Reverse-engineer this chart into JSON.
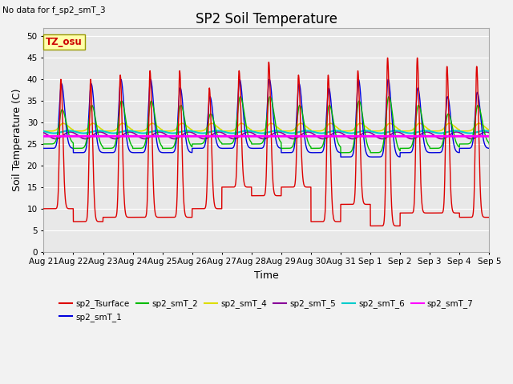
{
  "title": "SP2 Soil Temperature",
  "ylabel": "Soil Temperature (C)",
  "xlabel": "Time",
  "no_data_note": "No data for f_sp2_smT_3",
  "tz_label": "TZ_osu",
  "ylim": [
    0,
    52
  ],
  "yticks": [
    0,
    5,
    10,
    15,
    20,
    25,
    30,
    35,
    40,
    45,
    50
  ],
  "tick_labels": [
    "Aug 21",
    "Aug 22",
    "Aug 23",
    "Aug 24",
    "Aug 25",
    "Aug 26",
    "Aug 27",
    "Aug 28",
    "Aug 29",
    "Aug 30",
    "Aug 31",
    "Sep 1",
    "Sep 2",
    "Sep 3",
    "Sep 4",
    "Sep 5"
  ],
  "bg_color": "#e8e8e8",
  "fig_bg_color": "#f2f2f2",
  "series_colors": {
    "sp2_Tsurface": "#dd0000",
    "sp2_smT_1": "#0000dd",
    "sp2_smT_2": "#00bb00",
    "sp2_smT_4": "#dddd00",
    "sp2_smT_5": "#880099",
    "sp2_smT_6": "#00cccc",
    "sp2_smT_7": "#ff00ff"
  },
  "legend_entries": [
    {
      "label": "sp2_Tsurface",
      "color": "#dd0000"
    },
    {
      "label": "sp2_smT_1",
      "color": "#0000dd"
    },
    {
      "label": "sp2_smT_2",
      "color": "#00bb00"
    },
    {
      "label": "sp2_smT_4",
      "color": "#dddd00"
    },
    {
      "label": "sp2_smT_5",
      "color": "#880099"
    },
    {
      "label": "sp2_smT_6",
      "color": "#00cccc"
    },
    {
      "label": "sp2_smT_7",
      "color": "#ff00ff"
    }
  ],
  "n_days": 15,
  "pts_per_day": 240
}
